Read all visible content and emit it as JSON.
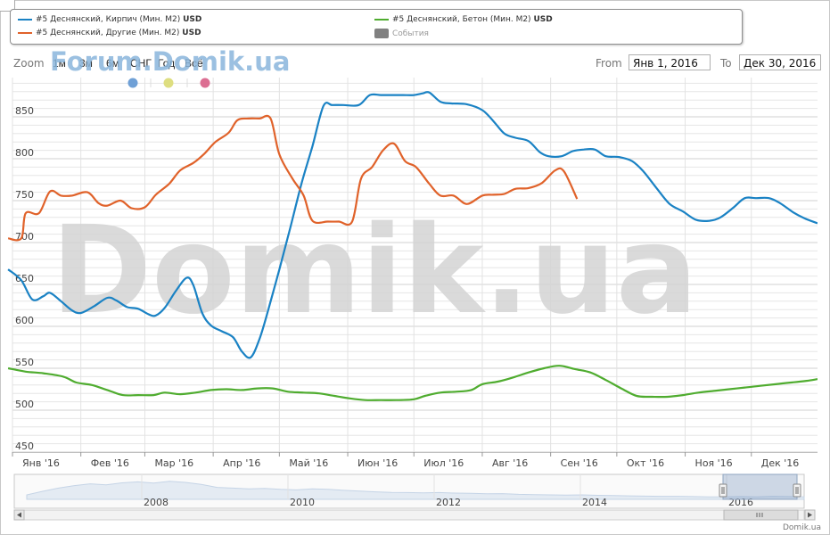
{
  "legend": {
    "items": [
      {
        "label": "#5 Деснянский, Кирпич (Мин. М2)",
        "unit": "USD",
        "color": "#1a82c4"
      },
      {
        "label": "#5 Деснянский, Другие (Мин. М2)",
        "unit": "USD",
        "color": "#e0622a"
      },
      {
        "label": "#5 Деснянский, Бетон (Мин. М2)",
        "unit": "USD",
        "color": "#4fac2f"
      }
    ],
    "events_label": "События",
    "events_color": "#808080"
  },
  "range_selector": {
    "zoom_label": "Zoom",
    "buttons": [
      "1м",
      "3м",
      "6м",
      "СНГ",
      "Год",
      "Всё"
    ],
    "from_label": "From",
    "from_value": "Янв 1, 2016",
    "to_label": "To",
    "to_value": "Дек 30, 2016"
  },
  "watermark_top": "Forum.Domik.ua",
  "watermark_big": "Domik.ua",
  "credits": "Domik.ua",
  "flag_colors": [
    "#6fa0d6",
    "#dede80",
    "#dc6e92"
  ],
  "chart_data": {
    "type": "line",
    "ylim": [
      450,
      895
    ],
    "yticks": [
      450,
      500,
      550,
      600,
      650,
      700,
      750,
      800,
      850
    ],
    "x_start": "2016-01-01",
    "x_end": "2016-12-31",
    "x_tick_labels": [
      "Янв '16",
      "Фев '16",
      "Мар '16",
      "Апр '16",
      "Май '16",
      "Июн '16",
      "Июл '16",
      "Авг '16",
      "Сен '16",
      "Окт '16",
      "Ноя '16",
      "Дек '16"
    ],
    "x_ticks": [
      "2016-01-01",
      "2016-02-01",
      "2016-03-01",
      "2016-04-01",
      "2016-05-01",
      "2016-06-01",
      "2016-07-01",
      "2016-08-01",
      "2016-09-01",
      "2016-10-01",
      "2016-11-01",
      "2016-12-01"
    ],
    "series": [
      {
        "name": "#5 Деснянский, Кирпич (Мин. М2)",
        "color": "#1a82c4",
        "points": [
          [
            "2015-12-30",
            668
          ],
          [
            "2016-01-05",
            655
          ],
          [
            "2016-01-10",
            632
          ],
          [
            "2016-01-15",
            636
          ],
          [
            "2016-01-18",
            640
          ],
          [
            "2016-01-23",
            630
          ],
          [
            "2016-01-28",
            619
          ],
          [
            "2016-02-01",
            616
          ],
          [
            "2016-02-07",
            624
          ],
          [
            "2016-02-13",
            634
          ],
          [
            "2016-02-17",
            631
          ],
          [
            "2016-02-22",
            623
          ],
          [
            "2016-02-27",
            621
          ],
          [
            "2016-03-03",
            614
          ],
          [
            "2016-03-06",
            613
          ],
          [
            "2016-03-10",
            622
          ],
          [
            "2016-03-15",
            642
          ],
          [
            "2016-03-20",
            658
          ],
          [
            "2016-03-23",
            649
          ],
          [
            "2016-03-27",
            616
          ],
          [
            "2016-03-31",
            601
          ],
          [
            "2016-04-05",
            594
          ],
          [
            "2016-04-10",
            587
          ],
          [
            "2016-04-14",
            570
          ],
          [
            "2016-04-18",
            563
          ],
          [
            "2016-04-22",
            585
          ],
          [
            "2016-04-26",
            620
          ],
          [
            "2016-05-01",
            668
          ],
          [
            "2016-05-06",
            718
          ],
          [
            "2016-05-11",
            770
          ],
          [
            "2016-05-16",
            815
          ],
          [
            "2016-05-21",
            863
          ],
          [
            "2016-05-25",
            864
          ],
          [
            "2016-05-30",
            864
          ],
          [
            "2016-06-06",
            864
          ],
          [
            "2016-06-11",
            876
          ],
          [
            "2016-06-16",
            876
          ],
          [
            "2016-06-21",
            876
          ],
          [
            "2016-06-26",
            876
          ],
          [
            "2016-07-01",
            876
          ],
          [
            "2016-07-05",
            878
          ],
          [
            "2016-07-08",
            879
          ],
          [
            "2016-07-13",
            868
          ],
          [
            "2016-07-18",
            866
          ],
          [
            "2016-07-25",
            865
          ],
          [
            "2016-08-01",
            858
          ],
          [
            "2016-08-06",
            845
          ],
          [
            "2016-08-11",
            830
          ],
          [
            "2016-08-16",
            825
          ],
          [
            "2016-08-22",
            821
          ],
          [
            "2016-08-27",
            808
          ],
          [
            "2016-08-31",
            803
          ],
          [
            "2016-09-06",
            803
          ],
          [
            "2016-09-11",
            809
          ],
          [
            "2016-09-16",
            811
          ],
          [
            "2016-09-21",
            811
          ],
          [
            "2016-09-26",
            803
          ],
          [
            "2016-10-02",
            802
          ],
          [
            "2016-10-08",
            797
          ],
          [
            "2016-10-13",
            785
          ],
          [
            "2016-10-19",
            765
          ],
          [
            "2016-10-25",
            746
          ],
          [
            "2016-10-31",
            737
          ],
          [
            "2016-11-06",
            727
          ],
          [
            "2016-11-12",
            726
          ],
          [
            "2016-11-17",
            730
          ],
          [
            "2016-11-23",
            742
          ],
          [
            "2016-11-28",
            753
          ],
          [
            "2016-12-03",
            753
          ],
          [
            "2016-12-09",
            753
          ],
          [
            "2016-12-14",
            747
          ],
          [
            "2016-12-20",
            736
          ],
          [
            "2016-12-25",
            729
          ],
          [
            "2016-12-31",
            723
          ]
        ]
      },
      {
        "name": "#5 Деснянский, Другие (Мин. М2)",
        "color": "#e0622a",
        "points": [
          [
            "2015-12-30",
            705
          ],
          [
            "2016-01-05",
            705
          ],
          [
            "2016-01-07",
            735
          ],
          [
            "2016-01-13",
            735
          ],
          [
            "2016-01-18",
            761
          ],
          [
            "2016-01-23",
            756
          ],
          [
            "2016-01-28",
            756
          ],
          [
            "2016-02-04",
            760
          ],
          [
            "2016-02-09",
            747
          ],
          [
            "2016-02-13",
            744
          ],
          [
            "2016-02-19",
            750
          ],
          [
            "2016-02-24",
            741
          ],
          [
            "2016-03-01",
            742
          ],
          [
            "2016-03-06",
            757
          ],
          [
            "2016-03-12",
            770
          ],
          [
            "2016-03-17",
            786
          ],
          [
            "2016-03-23",
            795
          ],
          [
            "2016-03-28",
            806
          ],
          [
            "2016-04-02",
            820
          ],
          [
            "2016-04-08",
            831
          ],
          [
            "2016-04-12",
            846
          ],
          [
            "2016-04-17",
            848
          ],
          [
            "2016-04-22",
            848
          ],
          [
            "2016-04-27",
            848
          ],
          [
            "2016-05-01",
            805
          ],
          [
            "2016-05-07",
            776
          ],
          [
            "2016-05-12",
            756
          ],
          [
            "2016-05-16",
            726
          ],
          [
            "2016-05-23",
            725
          ],
          [
            "2016-05-28",
            725
          ],
          [
            "2016-06-03",
            725
          ],
          [
            "2016-06-07",
            776
          ],
          [
            "2016-06-12",
            790
          ],
          [
            "2016-06-17",
            810
          ],
          [
            "2016-06-22",
            818
          ],
          [
            "2016-06-27",
            797
          ],
          [
            "2016-07-02",
            790
          ],
          [
            "2016-07-08",
            770
          ],
          [
            "2016-07-13",
            756
          ],
          [
            "2016-07-19",
            756
          ],
          [
            "2016-07-25",
            746
          ],
          [
            "2016-08-01",
            756
          ],
          [
            "2016-08-06",
            757
          ],
          [
            "2016-08-11",
            758
          ],
          [
            "2016-08-16",
            764
          ],
          [
            "2016-08-22",
            765
          ],
          [
            "2016-08-28",
            771
          ],
          [
            "2016-09-03",
            786
          ],
          [
            "2016-09-07",
            785
          ],
          [
            "2016-09-13",
            752
          ]
        ]
      },
      {
        "name": "#5 Деснянский, Бетон (Мин. М2)",
        "color": "#4fac2f",
        "points": [
          [
            "2015-12-30",
            550
          ],
          [
            "2016-01-07",
            546
          ],
          [
            "2016-01-15",
            544
          ],
          [
            "2016-01-24",
            540
          ],
          [
            "2016-01-30",
            533
          ],
          [
            "2016-02-06",
            530
          ],
          [
            "2016-02-13",
            524
          ],
          [
            "2016-02-20",
            518
          ],
          [
            "2016-02-27",
            518
          ],
          [
            "2016-03-05",
            518
          ],
          [
            "2016-03-10",
            521
          ],
          [
            "2016-03-17",
            519
          ],
          [
            "2016-03-24",
            521
          ],
          [
            "2016-03-31",
            524
          ],
          [
            "2016-04-07",
            525
          ],
          [
            "2016-04-14",
            524
          ],
          [
            "2016-04-21",
            526
          ],
          [
            "2016-04-28",
            526
          ],
          [
            "2016-05-05",
            522
          ],
          [
            "2016-05-12",
            521
          ],
          [
            "2016-05-19",
            520
          ],
          [
            "2016-05-26",
            517
          ],
          [
            "2016-06-02",
            514
          ],
          [
            "2016-06-09",
            512
          ],
          [
            "2016-06-16",
            512
          ],
          [
            "2016-06-23",
            512
          ],
          [
            "2016-07-01",
            513
          ],
          [
            "2016-07-06",
            517
          ],
          [
            "2016-07-13",
            521
          ],
          [
            "2016-07-20",
            522
          ],
          [
            "2016-07-27",
            524
          ],
          [
            "2016-08-01",
            531
          ],
          [
            "2016-08-08",
            534
          ],
          [
            "2016-08-15",
            539
          ],
          [
            "2016-08-22",
            545
          ],
          [
            "2016-08-29",
            550
          ],
          [
            "2016-09-05",
            553
          ],
          [
            "2016-09-12",
            549
          ],
          [
            "2016-09-19",
            545
          ],
          [
            "2016-09-26",
            536
          ],
          [
            "2016-10-03",
            526
          ],
          [
            "2016-10-10",
            517
          ],
          [
            "2016-10-17",
            516
          ],
          [
            "2016-10-24",
            516
          ],
          [
            "2016-10-31",
            518
          ],
          [
            "2016-11-07",
            521
          ],
          [
            "2016-11-14",
            523
          ],
          [
            "2016-11-21",
            525
          ],
          [
            "2016-11-28",
            527
          ],
          [
            "2016-12-05",
            529
          ],
          [
            "2016-12-12",
            531
          ],
          [
            "2016-12-19",
            533
          ],
          [
            "2016-12-26",
            535
          ],
          [
            "2016-12-31",
            537
          ]
        ]
      }
    ],
    "navigator": {
      "year_labels": [
        "2008",
        "2010",
        "2012",
        "2014",
        "2016"
      ]
    }
  }
}
